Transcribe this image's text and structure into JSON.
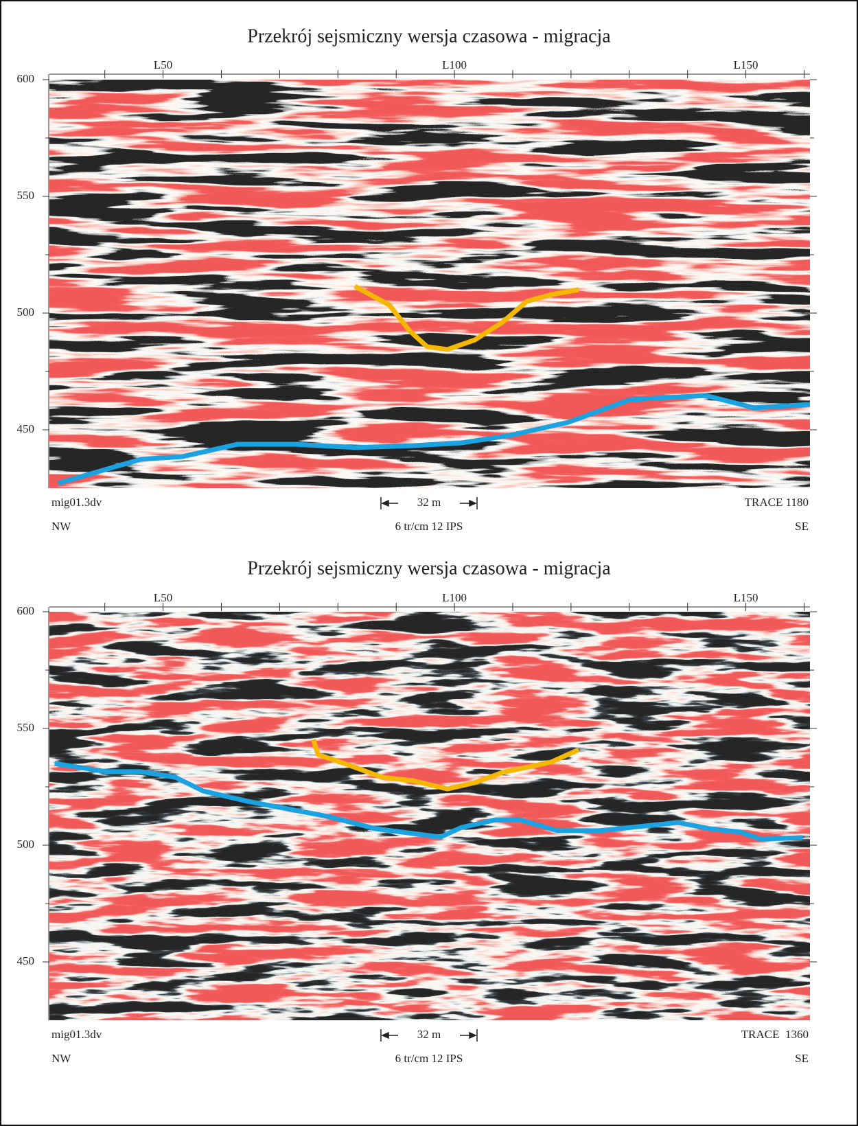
{
  "chart_data": [
    {
      "type": "line",
      "title": "Przekrój sejsmiczny wersja czasowa - migracja",
      "xlim": [
        30.5,
        161
      ],
      "ylim": [
        425,
        600
      ],
      "xticks": [
        40,
        {
          "value": 50,
          "label": "L50"
        },
        60,
        70,
        80,
        90,
        {
          "value": 100,
          "label": "L100"
        },
        110,
        120,
        130,
        140,
        {
          "value": 150,
          "label": "L150"
        },
        160
      ],
      "yticks": [
        450,
        500,
        550,
        600
      ],
      "series": [
        {
          "color": "#1aa3e0",
          "x": [
            32.0,
            46.2,
            53.3,
            62.8,
            72.8,
            82.9,
            92.9,
            101.2,
            109.5,
            119.5,
            130.1,
            143.1,
            151.4,
            161
          ],
          "values": [
            427.1,
            437.4,
            438.5,
            443.8,
            443.8,
            442.4,
            443.2,
            444.4,
            447.6,
            453.2,
            462.9,
            464.7,
            459.4,
            460.9
          ]
        },
        {
          "color": "#f5b800",
          "x": [
            82.9,
            88.8,
            92.3,
            95.3,
            98.8,
            103.5,
            108.3,
            112.4,
            116.6,
            121.3
          ],
          "values": [
            511.5,
            503.5,
            492.4,
            485.6,
            484.4,
            488.5,
            496.2,
            505.0,
            507.9,
            510.0
          ]
        }
      ],
      "file": "mig01.3dv",
      "scale_bar": "32 m",
      "trace": "TRACE 1180",
      "left_dir": "NW",
      "scale": "6 tr/cm 12 IPS",
      "right_dir": "SE"
    },
    {
      "type": "line",
      "title": "Przekrój sejsmiczny wersja czasowa - migracja",
      "xlim": [
        30.5,
        161
      ],
      "ylim": [
        425,
        600
      ],
      "xticks": [
        40,
        {
          "value": 50,
          "label": "L50"
        },
        60,
        70,
        80,
        90,
        {
          "value": 100,
          "label": "L100"
        },
        110,
        120,
        130,
        140,
        {
          "value": 150,
          "label": "L150"
        },
        160
      ],
      "yticks": [
        450,
        500,
        550,
        600
      ],
      "series": [
        {
          "color": "#1aa3e0",
          "x": [
            31.4,
            40.3,
            46.2,
            52.1,
            56.9,
            64.5,
            78.7,
            86.4,
            97.6,
            101.2,
            107.1,
            111.2,
            117.7,
            124.8,
            138.4,
            143.7,
            149.1,
            152.6,
            159.7
          ],
          "values": [
            535.0,
            531.5,
            531.5,
            529.1,
            523.2,
            518.8,
            512.1,
            507.1,
            503.5,
            507.6,
            510.9,
            510.9,
            506.2,
            506.2,
            509.7,
            507.1,
            505.6,
            502.6,
            503.2
          ]
        },
        {
          "color": "#f5b800",
          "x": [
            75.8,
            76.6,
            81.1,
            87.6,
            92.9,
            98.8,
            103.5,
            108.3,
            116.6,
            121.3
          ],
          "values": [
            545.3,
            538.8,
            535.0,
            529.1,
            527.6,
            524.1,
            526.8,
            531.2,
            535.6,
            540.9
          ]
        }
      ],
      "file": "mig01.3dv",
      "scale_bar": "32 m",
      "trace": "TRACE  1360",
      "left_dir": "NW",
      "scale": "6 tr/cm 12 IPS",
      "right_dir": "SE"
    }
  ]
}
